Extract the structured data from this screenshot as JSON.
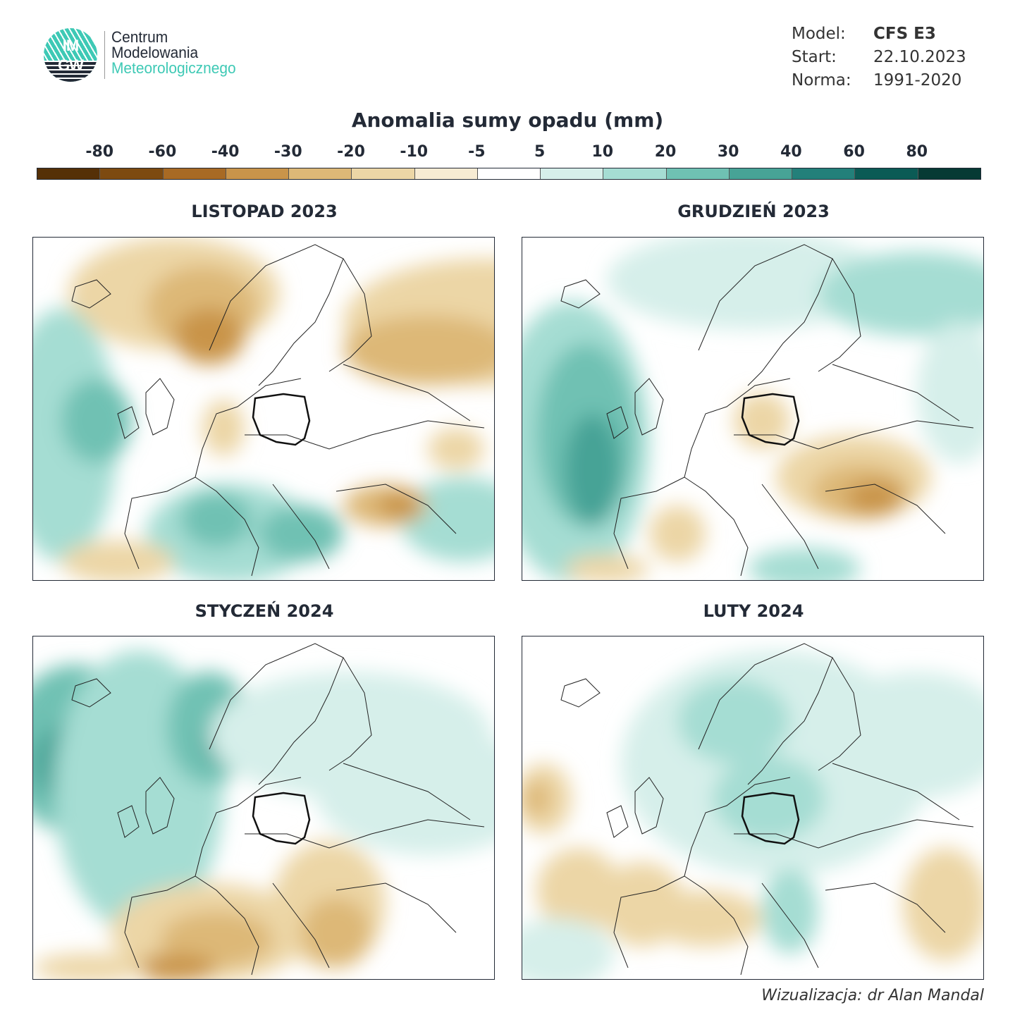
{
  "logo": {
    "mark_top": "IM",
    "mark_bottom": "GW",
    "line1": "Centrum",
    "line2": "Modelowania",
    "line3": "Meteorologicznego"
  },
  "meta": {
    "model_label": "Model:",
    "model_value": "CFS E3",
    "start_label": "Start:",
    "start_value": "22.10.2023",
    "norm_label": "Norma:",
    "norm_value": "1991-2020"
  },
  "colorbar": {
    "title": "Anomalia sumy opadu (mm)",
    "ticks": [
      "-80",
      "-60",
      "-40",
      "-30",
      "-20",
      "-10",
      "-5",
      "5",
      "10",
      "20",
      "30",
      "40",
      "60",
      "80"
    ],
    "colors": [
      "#553007",
      "#7d4a10",
      "#a86a24",
      "#c9944a",
      "#ddb877",
      "#ecd6a6",
      "#f7ebd3",
      "#ffffff",
      "#d6efea",
      "#a5ddd3",
      "#6fc1b3",
      "#47a396",
      "#23807a",
      "#0b5b55",
      "#063a34"
    ]
  },
  "panels": [
    {
      "title": "LISTOPAD 2023"
    },
    {
      "title": "GRUDZIEŃ 2023"
    },
    {
      "title": "STYCZEŃ 2024"
    },
    {
      "title": "LUTY 2024"
    }
  ],
  "credit": "Wizualizacja: dr Alan Mandal"
}
